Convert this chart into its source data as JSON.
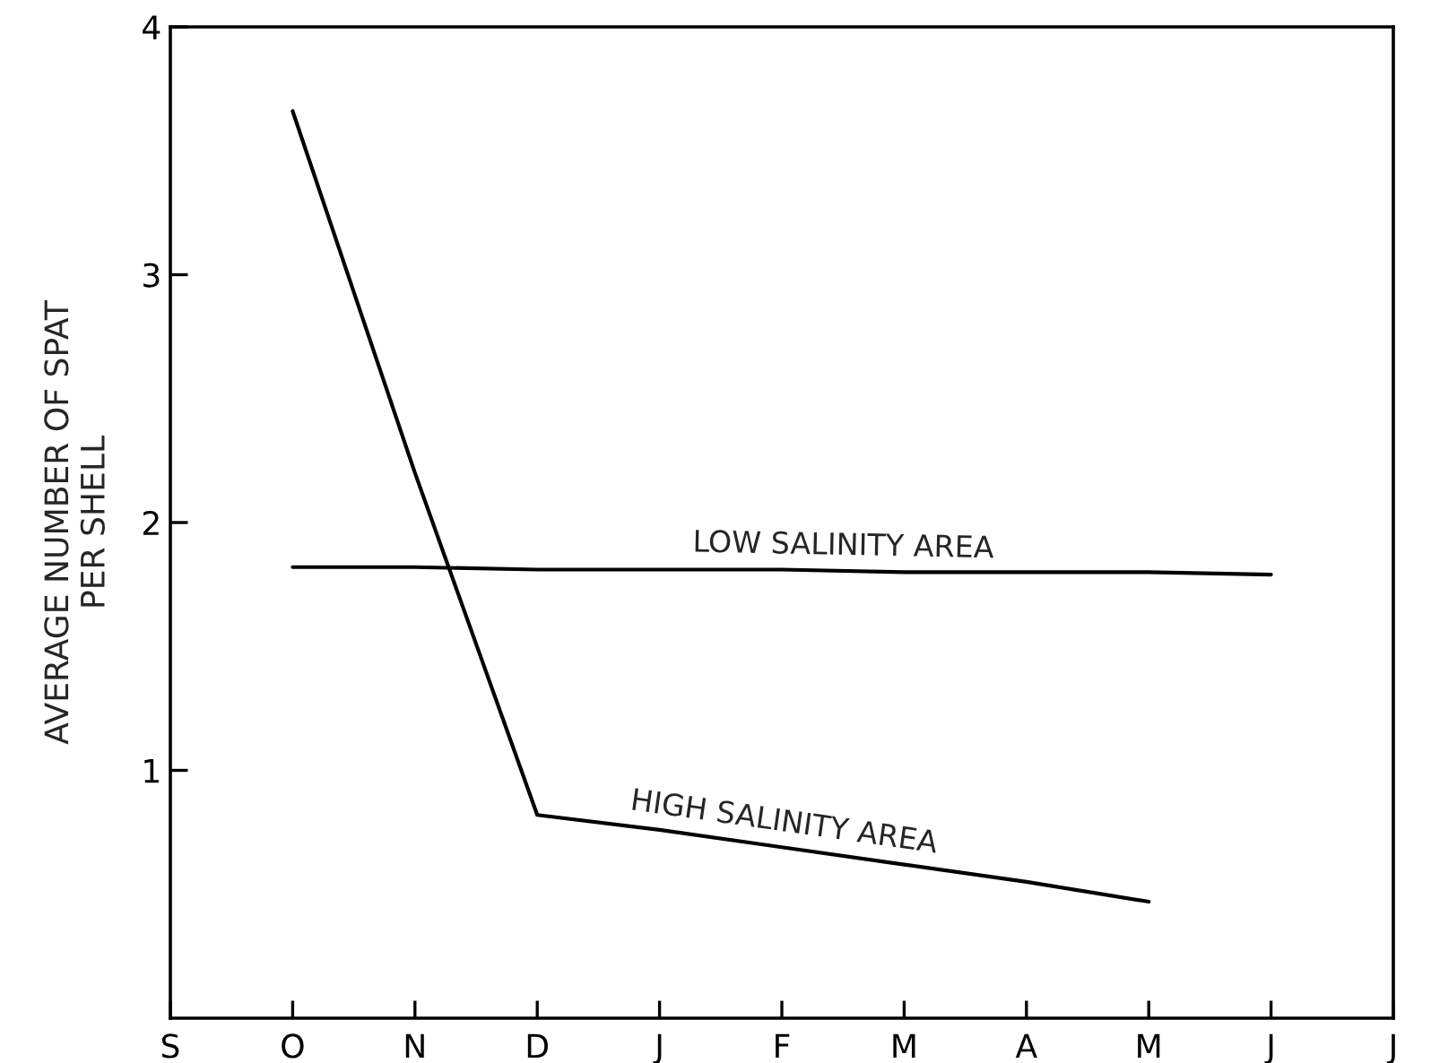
{
  "chart_data": {
    "type": "line",
    "ylabel": "AVERAGE NUMBER OF SPAT\nPER SHELL",
    "categories": [
      "S",
      "O",
      "N",
      "D",
      "J",
      "F",
      "M",
      "A",
      "M",
      "J",
      "J"
    ],
    "ylim": [
      0,
      4
    ],
    "yticks": [
      1,
      2,
      3,
      4
    ],
    "grid": false,
    "legend": false,
    "marker": "none",
    "line_style": "solid",
    "series": [
      {
        "name": "LOW SALINITY AREA",
        "color": "#000000",
        "values": [
          null,
          1.82,
          1.82,
          1.81,
          1.81,
          1.81,
          1.8,
          1.8,
          1.8,
          1.79,
          null
        ]
      },
      {
        "name": "HIGH SALINITY AREA",
        "color": "#000000",
        "values": [
          null,
          3.66,
          2.2,
          0.82,
          0.76,
          0.69,
          0.62,
          0.55,
          0.47,
          null,
          null
        ]
      }
    ]
  }
}
